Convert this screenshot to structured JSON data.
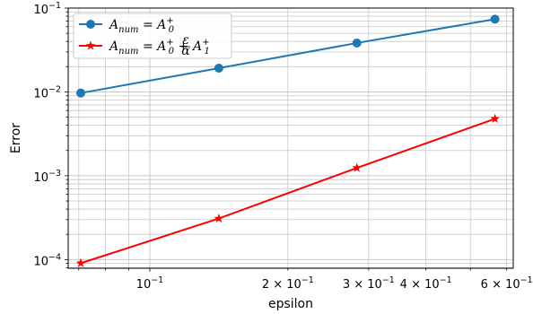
{
  "chart_data": {
    "type": "line",
    "xlabel": "epsilon",
    "ylabel": "Error",
    "xscale": "log",
    "yscale": "log",
    "xlim": [
      0.06638,
      0.6201
    ],
    "ylim": [
      7.88e-05,
      0.1
    ],
    "grid": "both-major-minor",
    "legend_position": "top-left",
    "x": [
      0.0707,
      0.1414,
      0.2828,
      0.5657
    ],
    "series": [
      {
        "name": "A_num = A_0^+",
        "legend_main": "A",
        "legend_sub1": "num",
        "legend_mid": " = A",
        "legend_sub2": "0",
        "legend_sup2": "+",
        "values": [
          0.0097,
          0.0192,
          0.0383,
          0.0738
        ],
        "color": "#1f77b4",
        "marker": "circle"
      },
      {
        "name": "A_num = A_0^+ + (ε/α) A_1^+",
        "legend_main": "A",
        "legend_sub1": "num",
        "legend_mid": " = A",
        "legend_sub2": "0",
        "legend_sup2": "+",
        "legend_plus": " + ",
        "legend_frac_num": "ε",
        "legend_frac_den": "α",
        "legend_tail": "A",
        "legend_sub3": "1",
        "legend_sup3": "+",
        "values": [
          9.05e-05,
          0.000309,
          0.00124,
          0.00478
        ],
        "color": "#ff0000",
        "marker": "star"
      }
    ],
    "y_ticks": [
      {
        "value": 0.1,
        "base": "10",
        "exp": "−1"
      },
      {
        "value": 0.01,
        "base": "10",
        "exp": "−2"
      },
      {
        "value": 0.001,
        "base": "10",
        "exp": "−3"
      },
      {
        "value": 0.0001,
        "base": "10",
        "exp": "−4"
      }
    ],
    "x_ticks": [
      {
        "value": 0.1,
        "coef": "",
        "base": "10",
        "exp": "−1"
      },
      {
        "value": 0.2,
        "coef": "2 × ",
        "base": "10",
        "exp": "−1"
      },
      {
        "value": 0.3,
        "coef": "3 × ",
        "base": "10",
        "exp": "−1"
      },
      {
        "value": 0.4,
        "coef": "4 × ",
        "base": "10",
        "exp": "−1"
      },
      {
        "value": 0.6,
        "coef": "6 × ",
        "base": "10",
        "exp": "−1"
      }
    ]
  }
}
